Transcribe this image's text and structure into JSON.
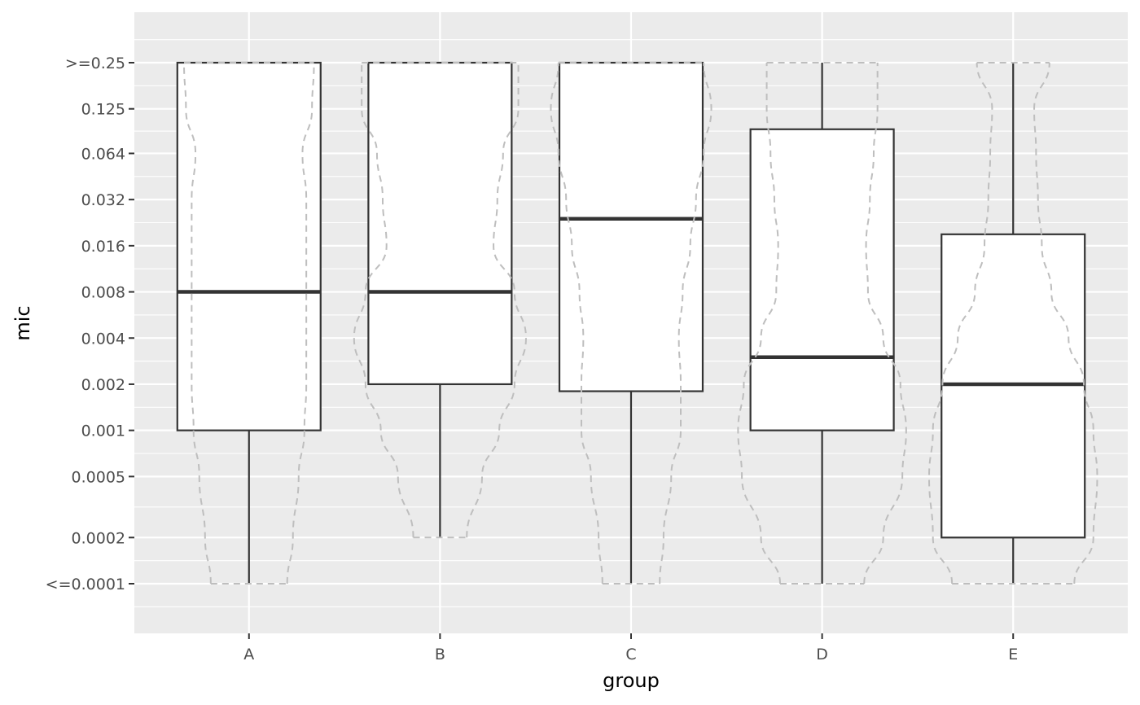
{
  "chart_data": {
    "type": "boxplot",
    "xlabel": "group",
    "ylabel": "mic",
    "y_scale": "log2",
    "y_ticks": [
      {
        "label": "<=0.0001",
        "value": 0.0001
      },
      {
        "label": "0.0002",
        "value": 0.0002
      },
      {
        "label": "0.0005",
        "value": 0.0005
      },
      {
        "label": "0.001",
        "value": 0.001
      },
      {
        "label": "0.002",
        "value": 0.002
      },
      {
        "label": "0.004",
        "value": 0.004
      },
      {
        "label": "0.008",
        "value": 0.008
      },
      {
        "label": "0.016",
        "value": 0.016
      },
      {
        "label": "0.032",
        "value": 0.032
      },
      {
        "label": "0.064",
        "value": 0.064
      },
      {
        "label": "0.125",
        "value": 0.125
      },
      {
        "label": ">=0.25",
        "value": 0.25
      }
    ],
    "ylim": [
      6e-05,
      0.35
    ],
    "grid": true,
    "background": "#ebebeb",
    "box_fill": "#ffffff",
    "box_line_color": "#333333",
    "violin_color": "#bebebe",
    "categories": [
      "A",
      "B",
      "C",
      "D",
      "E"
    ],
    "boxes": [
      {
        "group": "A",
        "min": 0.0001,
        "q1": 0.001,
        "median": 0.008,
        "q3": 0.25,
        "max": 0.25
      },
      {
        "group": "B",
        "min": 0.0002,
        "q1": 0.002,
        "median": 0.008,
        "q3": 0.25,
        "max": 0.25
      },
      {
        "group": "C",
        "min": 0.0001,
        "q1": 0.0018,
        "median": 0.024,
        "q3": 0.25,
        "max": 0.25
      },
      {
        "group": "D",
        "min": 0.0001,
        "q1": 0.001,
        "median": 0.003,
        "q3": 0.092,
        "max": 0.25
      },
      {
        "group": "E",
        "min": 0.0001,
        "q1": 0.0002,
        "median": 0.002,
        "q3": 0.019,
        "max": 0.25
      }
    ],
    "violins": [
      {
        "group": "A",
        "profile": [
          [
            0.0001,
            0.2
          ],
          [
            0.0002,
            0.23
          ],
          [
            0.0005,
            0.26
          ],
          [
            0.001,
            0.29
          ],
          [
            0.002,
            0.3
          ],
          [
            0.004,
            0.3
          ],
          [
            0.008,
            0.3
          ],
          [
            0.016,
            0.3
          ],
          [
            0.032,
            0.3
          ],
          [
            0.064,
            0.28
          ],
          [
            0.125,
            0.33
          ],
          [
            0.25,
            0.34
          ]
        ]
      },
      {
        "group": "B",
        "profile": [
          [
            0.0002,
            0.14
          ],
          [
            0.0005,
            0.22
          ],
          [
            0.001,
            0.31
          ],
          [
            0.002,
            0.39
          ],
          [
            0.004,
            0.45
          ],
          [
            0.008,
            0.39
          ],
          [
            0.016,
            0.28
          ],
          [
            0.032,
            0.3
          ],
          [
            0.064,
            0.33
          ],
          [
            0.125,
            0.41
          ],
          [
            0.25,
            0.41
          ]
        ]
      },
      {
        "group": "C",
        "profile": [
          [
            0.0001,
            0.15
          ],
          [
            0.0002,
            0.17
          ],
          [
            0.0005,
            0.21
          ],
          [
            0.001,
            0.26
          ],
          [
            0.002,
            0.26
          ],
          [
            0.004,
            0.25
          ],
          [
            0.008,
            0.27
          ],
          [
            0.016,
            0.31
          ],
          [
            0.032,
            0.34
          ],
          [
            0.064,
            0.38
          ],
          [
            0.125,
            0.42
          ],
          [
            0.25,
            0.38
          ]
        ]
      },
      {
        "group": "D",
        "profile": [
          [
            0.0001,
            0.22
          ],
          [
            0.0002,
            0.32
          ],
          [
            0.0005,
            0.42
          ],
          [
            0.001,
            0.44
          ],
          [
            0.002,
            0.41
          ],
          [
            0.004,
            0.32
          ],
          [
            0.008,
            0.24
          ],
          [
            0.016,
            0.23
          ],
          [
            0.032,
            0.25
          ],
          [
            0.064,
            0.27
          ],
          [
            0.125,
            0.29
          ],
          [
            0.25,
            0.29
          ]
        ]
      },
      {
        "group": "E",
        "profile": [
          [
            0.0001,
            0.32
          ],
          [
            0.0002,
            0.42
          ],
          [
            0.0005,
            0.44
          ],
          [
            0.001,
            0.42
          ],
          [
            0.002,
            0.37
          ],
          [
            0.004,
            0.29
          ],
          [
            0.008,
            0.2
          ],
          [
            0.016,
            0.15
          ],
          [
            0.032,
            0.13
          ],
          [
            0.064,
            0.12
          ],
          [
            0.125,
            0.11
          ],
          [
            0.25,
            0.19
          ]
        ]
      }
    ]
  }
}
